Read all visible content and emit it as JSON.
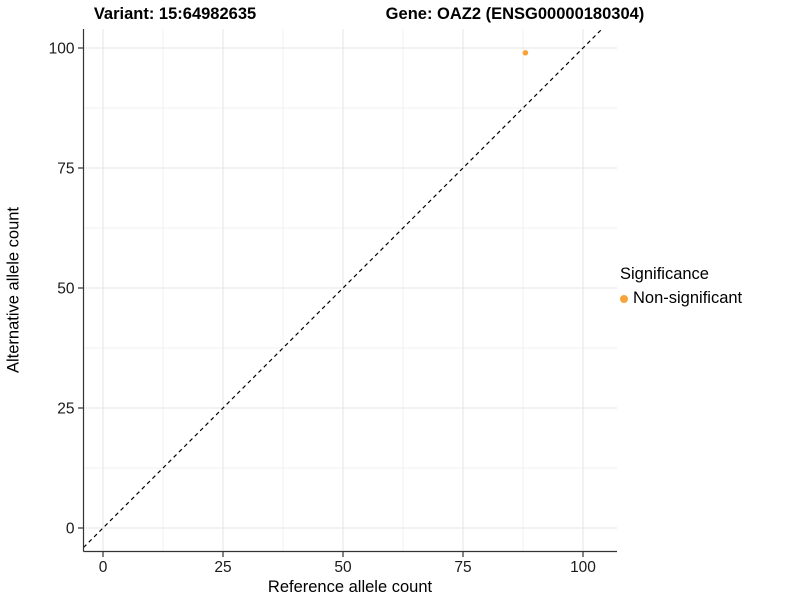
{
  "chart_data": {
    "type": "scatter",
    "title_left": "Variant: 15:64982635",
    "title_right": "Gene: OAZ2 (ENSG00000180304)",
    "xlabel": "Reference allele count",
    "ylabel": "Alternative allele count",
    "xlim": [
      -4,
      107
    ],
    "ylim": [
      -5,
      104
    ],
    "x_ticks": [
      0,
      25,
      50,
      75,
      100
    ],
    "y_ticks": [
      0,
      25,
      50,
      75,
      100
    ],
    "x_minor_ticks": [
      12.5,
      37.5,
      62.5,
      87.5
    ],
    "y_minor_ticks": [
      12.5,
      37.5,
      62.5,
      87.5
    ],
    "grid": true,
    "legend_position": "right",
    "series": [
      {
        "name": "Non-significant",
        "color": "#F9A43B",
        "points": [
          {
            "x": 88,
            "y": 99
          }
        ]
      }
    ],
    "reference_line": {
      "type": "identity",
      "dashed": true,
      "color": "#000000"
    },
    "legend": {
      "title": "Significance",
      "items": [
        {
          "label": "Non-significant",
          "color": "#F9A43B",
          "marker": "circle"
        }
      ]
    },
    "colors": {
      "point": "#F9A43B",
      "grid_major": "#E4E4E4",
      "grid_minor": "#F2F2F2",
      "axis_line": "#333333",
      "tick_mark": "#333333",
      "tick_text": "#1a1a1a",
      "background": "#FFFFFF"
    }
  }
}
